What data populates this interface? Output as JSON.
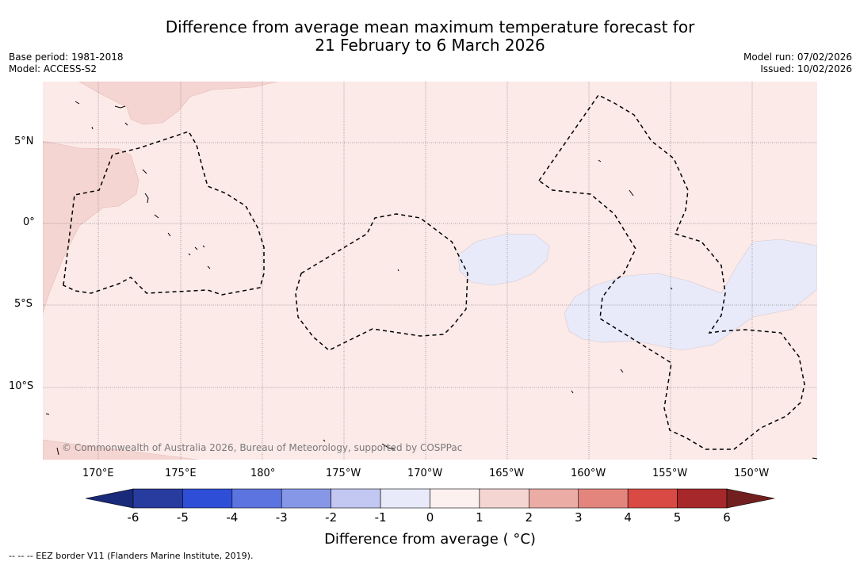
{
  "header": {
    "title_line1": "Difference from average mean maximum temperature forecast for",
    "title_line2": "21 February to 6 March 2026",
    "base_period": "Base period: 1981-2018",
    "model": "Model: ACCESS-S2",
    "model_run": "Model run: 07/02/2026",
    "issued": "Issued: 10/02/2026"
  },
  "map": {
    "lat_labels": [
      "5°N",
      "0°",
      "5°S",
      "10°S"
    ],
    "lon_labels": [
      "170°E",
      "175°E",
      "180°",
      "175°W",
      "170°W",
      "165°W",
      "160°W",
      "155°W",
      "150°W"
    ],
    "copyright": "© Commonwealth of Australia 2026, Bureau of Meteorology, supported by COSPPac",
    "colors": {
      "ocean_base": "#fbeae8",
      "warm_1_2": "#f5d5d2",
      "cool_0_1": "#e8eafa"
    }
  },
  "colorbar": {
    "ticks": [
      "-6",
      "-5",
      "-4",
      "-3",
      "-2",
      "-1",
      "0",
      "1",
      "2",
      "3",
      "4",
      "5",
      "6"
    ],
    "colors": [
      "#283b9e",
      "#2f4ed8",
      "#5b74e0",
      "#8797e8",
      "#c2c8f2",
      "#e8eafa",
      "#fdf1f0",
      "#f5d5d2",
      "#ebaca6",
      "#e4857d",
      "#d84a43",
      "#a6282a"
    ],
    "under_color": "#1a2a7a",
    "over_color": "#72201f",
    "label": "Difference from average ( °C)"
  },
  "footer": {
    "eez_note": "--  --  -- EEZ border V11 (Flanders Marine Institute, 2019)."
  }
}
